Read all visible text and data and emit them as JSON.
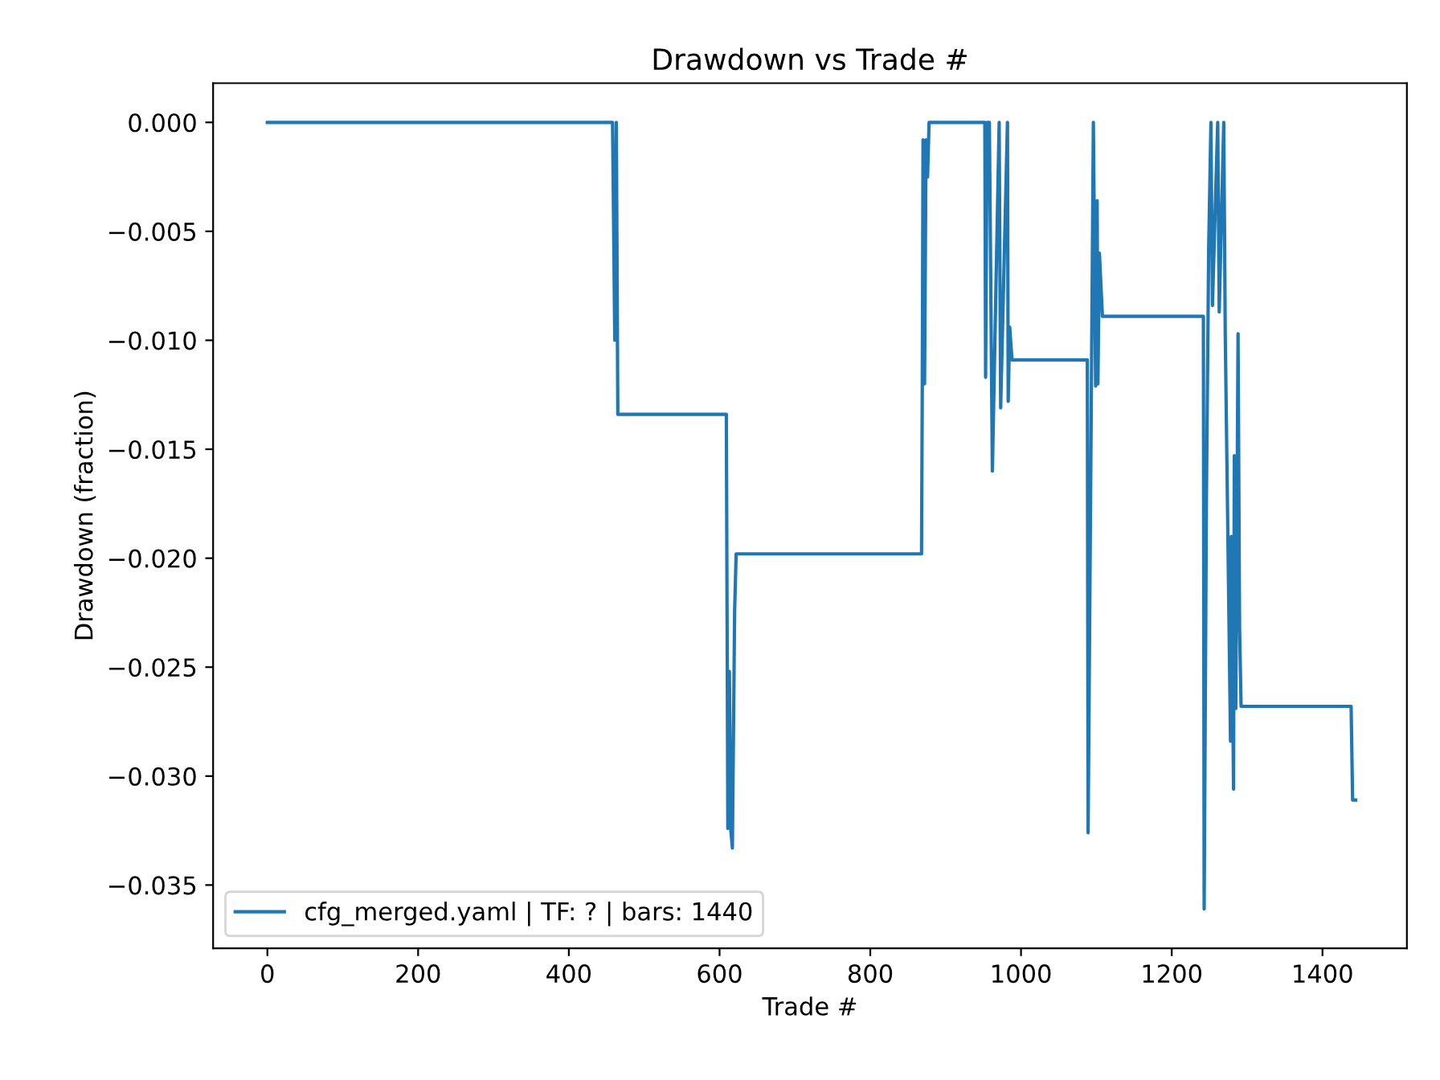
{
  "chart_data": {
    "type": "line",
    "title": "Drawdown vs Trade #",
    "xlabel": "Trade #",
    "ylabel": "Drawdown (fraction)",
    "xlim": [
      -72,
      1512
    ],
    "ylim": [
      -0.0379,
      0.0018
    ],
    "xticks": [
      0,
      200,
      400,
      600,
      800,
      1000,
      1200,
      1400
    ],
    "yticks": [
      {
        "value": 0.0,
        "label": "0.000"
      },
      {
        "value": -0.005,
        "label": "−0.005"
      },
      {
        "value": -0.01,
        "label": "−0.010"
      },
      {
        "value": -0.015,
        "label": "−0.015"
      },
      {
        "value": -0.02,
        "label": "−0.020"
      },
      {
        "value": -0.025,
        "label": "−0.025"
      },
      {
        "value": -0.03,
        "label": "−0.030"
      },
      {
        "value": -0.035,
        "label": "−0.035"
      }
    ],
    "legend": "bottom left",
    "grid": false,
    "marker": "none",
    "line_style": "solid",
    "series": [
      {
        "name": "cfg_merged.yaml | TF: ? | bars: 1440",
        "color": "#1f77b4",
        "x": [
          0,
          457,
          458,
          461,
          463,
          465,
          609,
          611,
          613,
          615,
          617,
          620,
          622,
          868,
          869,
          870,
          872,
          874,
          876,
          878,
          881,
          952,
          953,
          955,
          958,
          962,
          971,
          973,
          982,
          983,
          985,
          988,
          1088,
          1089,
          1096,
          1099,
          1101,
          1102,
          1104,
          1108,
          1242,
          1243,
          1246,
          1249,
          1252,
          1254,
          1261,
          1263,
          1269,
          1271,
          1278,
          1279,
          1282,
          1283,
          1285,
          1288,
          1290,
          1292,
          1438,
          1440,
          1444
        ],
        "values": [
          0.0,
          0.0,
          0.0,
          -0.01,
          0.0,
          -0.0134,
          -0.0134,
          -0.0324,
          -0.0252,
          -0.0325,
          -0.0333,
          -0.0224,
          -0.0198,
          -0.0198,
          -0.0121,
          -0.0008,
          -0.012,
          -0.0008,
          -0.0025,
          0.0,
          0.0,
          0.0,
          -0.0117,
          0.0,
          0.0,
          -0.016,
          0.0,
          -0.0131,
          0.0,
          -0.0128,
          -0.0094,
          -0.0109,
          -0.0109,
          -0.0326,
          0.0,
          -0.0121,
          -0.0036,
          -0.012,
          -0.006,
          -0.0089,
          -0.0089,
          -0.0361,
          -0.0173,
          -0.0058,
          0.0,
          -0.0084,
          0.0,
          -0.0087,
          0.0,
          -0.0097,
          -0.0284,
          -0.019,
          -0.0306,
          -0.0153,
          -0.0269,
          -0.0097,
          -0.0232,
          -0.0268,
          -0.0268,
          -0.0311,
          -0.0311
        ]
      }
    ]
  }
}
